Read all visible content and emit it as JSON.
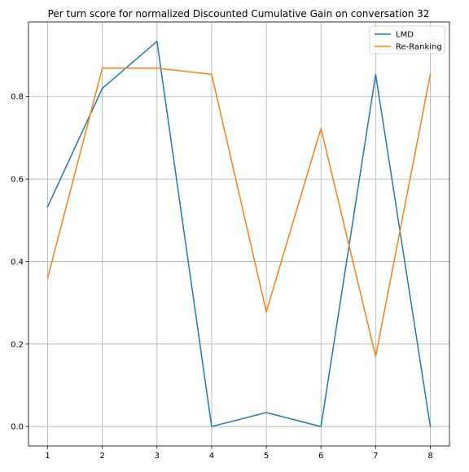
{
  "chart_data": {
    "type": "line",
    "title": "Per turn score for normalized Discounted Cumulative Gain on conversation 32",
    "xlabel": "",
    "ylabel": "",
    "x": [
      1,
      2,
      3,
      4,
      5,
      6,
      7,
      8
    ],
    "xlim": [
      0.65,
      8.35
    ],
    "ylim": [
      -0.047,
      0.981
    ],
    "x_ticks": [
      1,
      2,
      3,
      4,
      5,
      6,
      7,
      8
    ],
    "y_ticks": [
      0.0,
      0.2,
      0.4,
      0.6,
      0.8
    ],
    "y_tick_labels": [
      "0.0",
      "0.2",
      "0.4",
      "0.6",
      "0.8"
    ],
    "grid": true,
    "legend_position": "top-right",
    "series": [
      {
        "name": "LMD",
        "color": "#1f77b4",
        "values": [
          0.533,
          0.82,
          0.934,
          0.0,
          0.034,
          0.0,
          0.854,
          0.0
        ]
      },
      {
        "name": "Re-Ranking",
        "color": "#ff7f0e",
        "values": [
          0.36,
          0.869,
          0.869,
          0.854,
          0.278,
          0.723,
          0.17,
          0.854
        ]
      }
    ]
  }
}
